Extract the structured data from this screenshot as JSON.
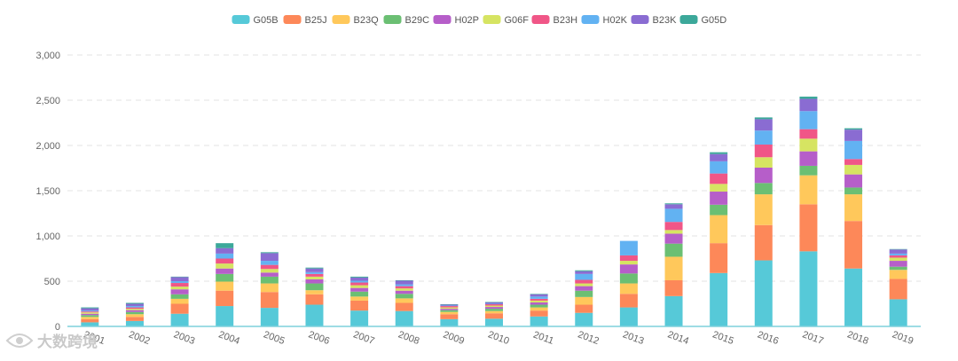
{
  "chart_data": {
    "type": "bar",
    "stacked": true,
    "legend_position": "top-center",
    "grid": true,
    "ylim": [
      0,
      3000
    ],
    "yticks": [
      0,
      500,
      1000,
      1500,
      2000,
      2500,
      3000
    ],
    "ytick_labels": [
      "0",
      "500",
      "1,000",
      "1,500",
      "2,000",
      "2,500",
      "3,000"
    ],
    "categories": [
      "2001",
      "2002",
      "2003",
      "2004",
      "2005",
      "2006",
      "2007",
      "2008",
      "2009",
      "2010",
      "2011",
      "2012",
      "2013",
      "2014",
      "2015",
      "2016",
      "2017",
      "2018",
      "2019"
    ],
    "series": [
      {
        "name": "G05B",
        "color": "#56c9d8",
        "values": [
          45,
          60,
          140,
          225,
          205,
          240,
          175,
          170,
          80,
          85,
          110,
          150,
          210,
          335,
          590,
          730,
          830,
          640,
          300
        ]
      },
      {
        "name": "B25J",
        "color": "#fd8859",
        "values": [
          35,
          45,
          110,
          170,
          175,
          115,
          110,
          90,
          55,
          60,
          65,
          90,
          150,
          175,
          330,
          390,
          520,
          525,
          225
        ]
      },
      {
        "name": "B23Q",
        "color": "#ffc85b",
        "values": [
          25,
          30,
          55,
          100,
          95,
          45,
          45,
          50,
          25,
          25,
          35,
          85,
          115,
          260,
          310,
          340,
          320,
          295,
          100
        ]
      },
      {
        "name": "B29C",
        "color": "#6bbf73",
        "values": [
          20,
          25,
          50,
          85,
          75,
          75,
          55,
          50,
          20,
          25,
          30,
          70,
          110,
          145,
          115,
          125,
          105,
          75,
          35
        ]
      },
      {
        "name": "H02P",
        "color": "#b65ec9",
        "values": [
          15,
          20,
          55,
          60,
          45,
          45,
          40,
          35,
          15,
          20,
          25,
          50,
          100,
          110,
          145,
          170,
          160,
          145,
          65
        ]
      },
      {
        "name": "G06F",
        "color": "#d6e462",
        "values": [
          15,
          15,
          30,
          55,
          40,
          30,
          30,
          25,
          15,
          15,
          20,
          30,
          40,
          40,
          85,
          115,
          140,
          105,
          35
        ]
      },
      {
        "name": "B23H",
        "color": "#f05687",
        "values": [
          10,
          15,
          40,
          55,
          45,
          30,
          30,
          25,
          15,
          15,
          20,
          40,
          60,
          90,
          115,
          140,
          105,
          65,
          25
        ]
      },
      {
        "name": "H02K",
        "color": "#62b2f2",
        "values": [
          10,
          15,
          20,
          55,
          45,
          20,
          20,
          20,
          5,
          5,
          25,
          65,
          160,
          145,
          135,
          155,
          200,
          200,
          20
        ]
      },
      {
        "name": "B23K",
        "color": "#8a6cd2",
        "values": [
          25,
          25,
          45,
          60,
          85,
          40,
          35,
          40,
          10,
          15,
          25,
          30,
          0,
          50,
          80,
          125,
          135,
          125,
          45
        ]
      },
      {
        "name": "G05D",
        "color": "#3ca89a",
        "values": [
          10,
          10,
          5,
          55,
          10,
          10,
          10,
          5,
          5,
          5,
          5,
          10,
          0,
          10,
          20,
          20,
          25,
          15,
          5
        ]
      }
    ]
  },
  "watermark": {
    "text": "大数跨境",
    "icon": "eye-logo-icon"
  }
}
